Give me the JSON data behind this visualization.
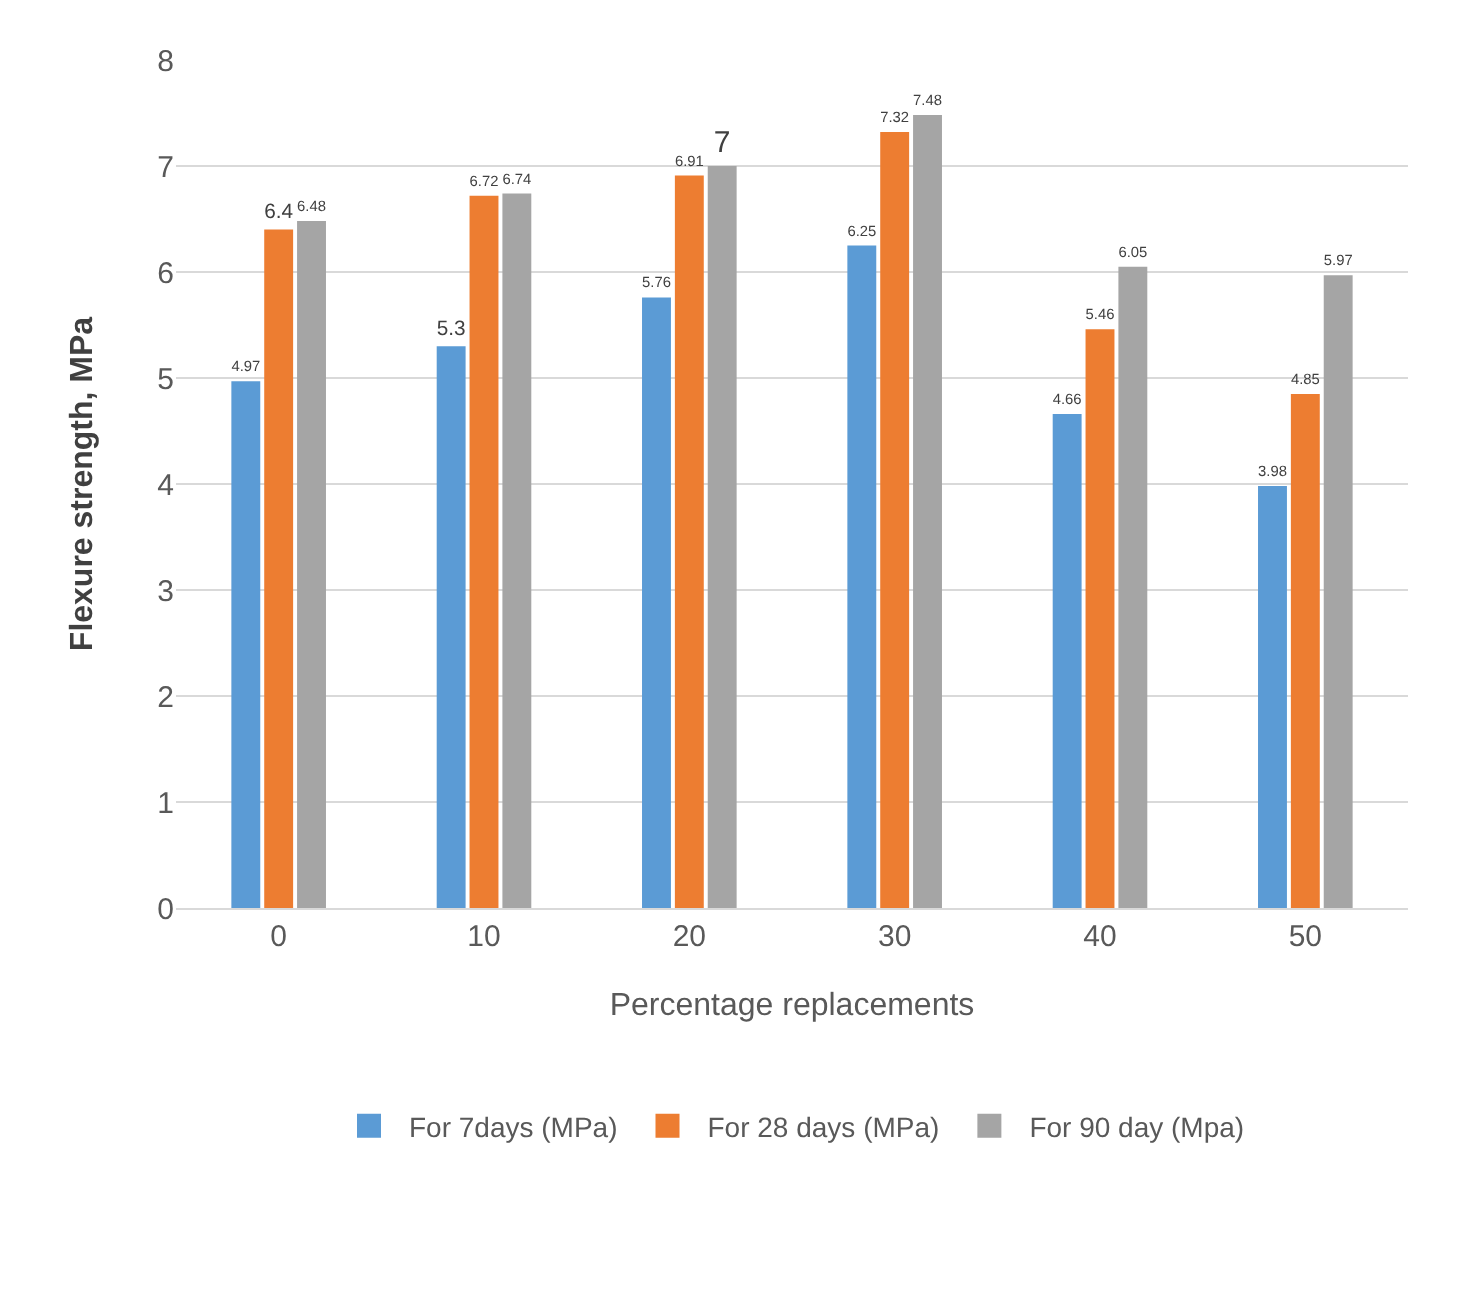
{
  "chart_data": {
    "type": "bar",
    "xlabel": "Percentage replacements",
    "ylabel": "Flexure strength, MPa",
    "categories": [
      "0",
      "10",
      "20",
      "30",
      "40",
      "50"
    ],
    "series": [
      {
        "name": "For 7days (MPa)",
        "color": "#5b9bd5",
        "values": [
          4.97,
          5.3,
          5.76,
          6.25,
          4.66,
          3.98
        ]
      },
      {
        "name": "For 28 days (MPa)",
        "color": "#ed7d31",
        "values": [
          6.4,
          6.72,
          6.91,
          7.32,
          5.46,
          4.85
        ]
      },
      {
        "name": "For 90 day (Mpa)",
        "color": "#a5a5a5",
        "values": [
          6.48,
          6.74,
          7,
          7.48,
          6.05,
          5.97
        ]
      }
    ],
    "ylim": [
      0,
      8
    ],
    "yticks": [
      0,
      1,
      2,
      3,
      4,
      5,
      6,
      7,
      8
    ],
    "grid": "y",
    "legend": "bottom",
    "data_labels": true
  }
}
